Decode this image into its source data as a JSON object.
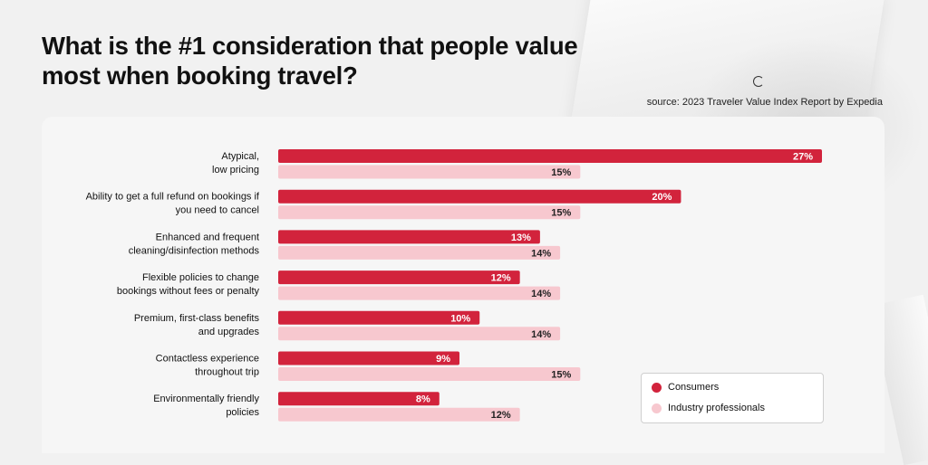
{
  "page": {
    "title": "What is the #1 consideration that people value most when booking travel?",
    "source": "source: 2023 Traveler Value Index Report by Expedia"
  },
  "colors": {
    "consumers": "#d2233c",
    "industry": "#f7c8cf"
  },
  "chart_data": {
    "type": "bar",
    "orientation": "horizontal",
    "title": "What is the #1 consideration that people value most when booking travel?",
    "categories": [
      [
        "Atypical,",
        "low pricing"
      ],
      [
        "Ability to get a full refund on bookings if",
        "you need to cancel"
      ],
      [
        "Enhanced and  frequent",
        "cleaning/disinfection methods"
      ],
      [
        "Flexible policies to change",
        "bookings without fees or penalty"
      ],
      [
        "Premium, first-class benefits",
        "and upgrades"
      ],
      [
        "Contactless experience",
        "throughout trip"
      ],
      [
        "Environmentally friendly",
        "policies"
      ]
    ],
    "series": [
      {
        "name": "Consumers",
        "values": [
          27,
          20,
          13,
          12,
          10,
          9,
          8
        ]
      },
      {
        "name": "Industry professionals",
        "values": [
          15,
          15,
          14,
          14,
          14,
          15,
          12
        ]
      }
    ],
    "value_suffix": "%",
    "xlim": [
      0,
      27
    ],
    "grid": false,
    "legend": "bottom-right"
  }
}
